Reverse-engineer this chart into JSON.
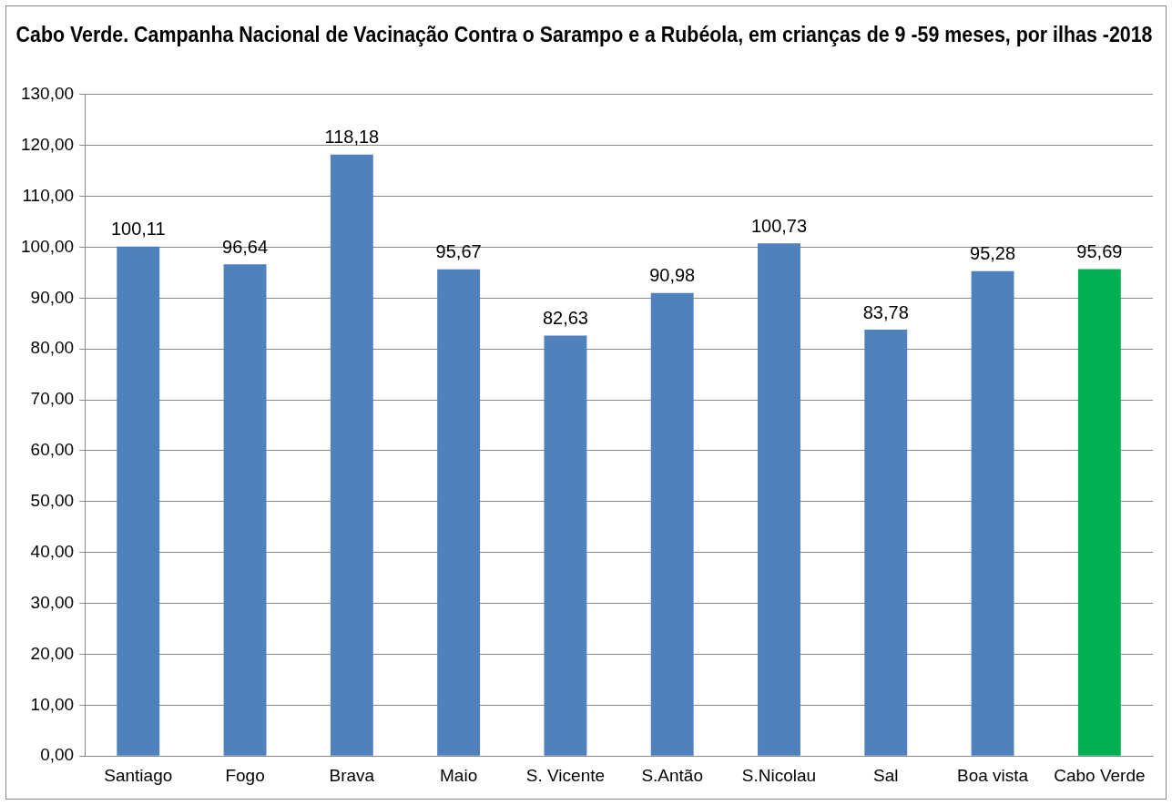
{
  "chart_data": {
    "type": "bar",
    "title": "Cabo Verde. Campanha Nacional de Vacinação Contra o Sarampo e a Rubéola, em crianças de 9 -59 meses, por ilhas -2018",
    "categories": [
      "Santiago",
      "Fogo",
      "Brava",
      "Maio",
      "S. Vicente",
      "S.Antão",
      "S.Nicolau",
      "Sal",
      "Boa vista",
      "Cabo Verde"
    ],
    "values": [
      100.11,
      96.64,
      118.18,
      95.67,
      82.63,
      90.98,
      100.73,
      83.78,
      95.28,
      95.69
    ],
    "value_labels": [
      "100,11",
      "96,64",
      "118,18",
      "95,67",
      "82,63",
      "90,98",
      "100,73",
      "83,78",
      "95,28",
      "95,69"
    ],
    "colors": [
      "#4f81bd",
      "#4f81bd",
      "#4f81bd",
      "#4f81bd",
      "#4f81bd",
      "#4f81bd",
      "#4f81bd",
      "#4f81bd",
      "#4f81bd",
      "#00b050"
    ],
    "ylim": [
      0,
      130
    ],
    "yticks": [
      {
        "value": 0,
        "label": "0,00"
      },
      {
        "value": 10,
        "label": "10,00"
      },
      {
        "value": 20,
        "label": "20,00"
      },
      {
        "value": 30,
        "label": "30,00"
      },
      {
        "value": 40,
        "label": "40,00"
      },
      {
        "value": 50,
        "label": "50,00"
      },
      {
        "value": 60,
        "label": "60,00"
      },
      {
        "value": 70,
        "label": "70,00"
      },
      {
        "value": 80,
        "label": "80,00"
      },
      {
        "value": 90,
        "label": "90,00"
      },
      {
        "value": 100,
        "label": "100,00"
      },
      {
        "value": 110,
        "label": "110,00"
      },
      {
        "value": 120,
        "label": "120,00"
      },
      {
        "value": 130,
        "label": "130,00"
      }
    ],
    "grid": "y",
    "legend": false
  }
}
